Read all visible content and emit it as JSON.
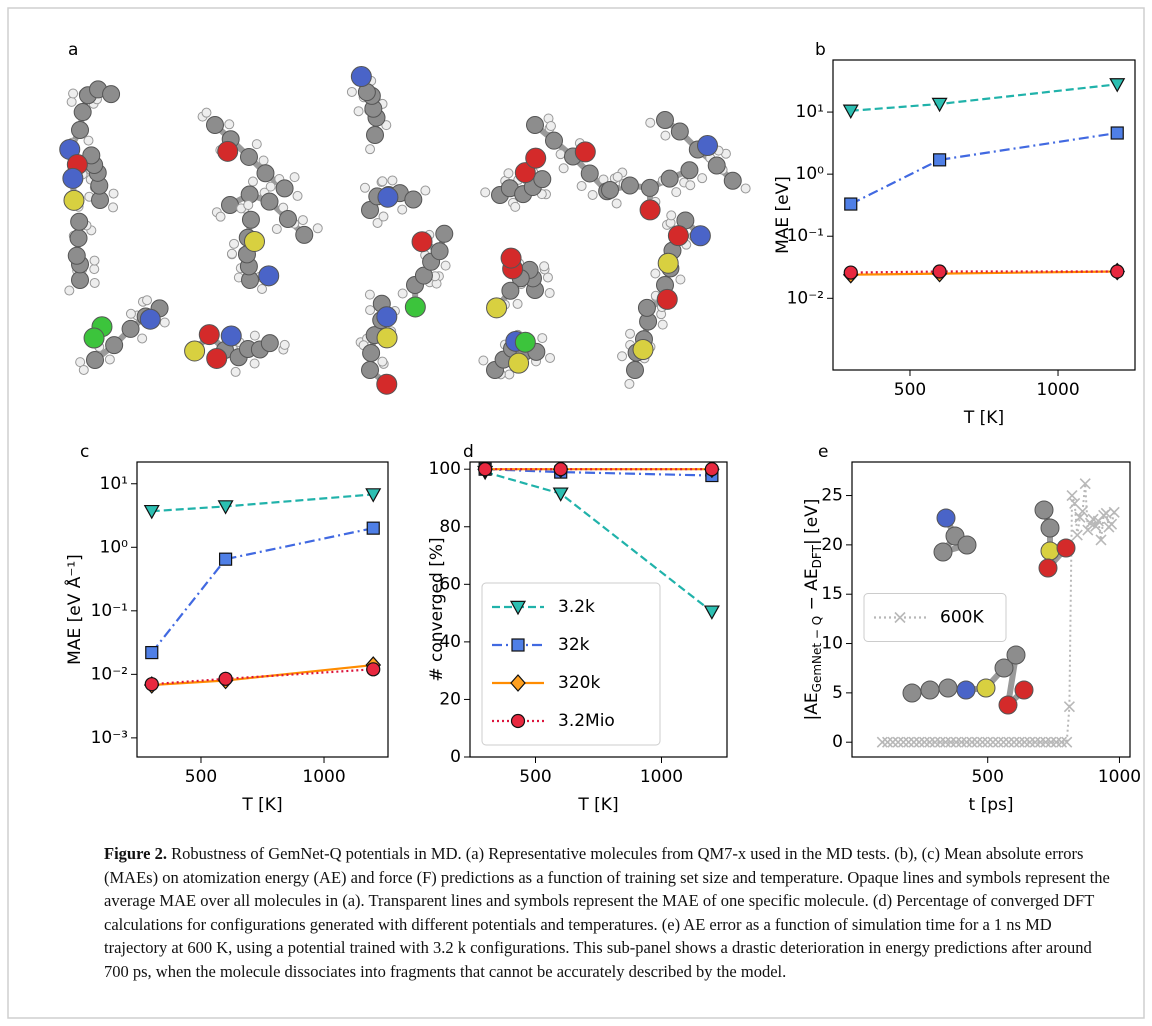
{
  "panel_a": {
    "panel_label": "a"
  },
  "chart_data": [
    {
      "panel_label": "b",
      "type": "line",
      "xlabel": "T [K]",
      "ylabel": "MAE [eV]",
      "log_y": true,
      "x": [
        300,
        600,
        1200
      ],
      "xlim": [
        240,
        1260
      ],
      "xticks": [
        500,
        1000
      ],
      "ylim": [
        0.0007,
        69
      ],
      "yticks": [
        {
          "value": 0.01,
          "label": "10⁻²"
        },
        {
          "value": 0.1,
          "label": "10⁻¹"
        },
        {
          "value": 1,
          "label": "10⁰"
        },
        {
          "value": 10,
          "label": "10¹"
        }
      ],
      "series": [
        {
          "color": "#20b2aa",
          "marker_color": "#2cbfb2",
          "marker": "triangle",
          "linestyle": "dashed",
          "values": [
            10.5,
            13.5,
            28
          ]
        },
        {
          "color": "#4169e1",
          "marker_color": "#4f7fe6",
          "marker": "square",
          "linestyle": "dashdot",
          "values": [
            0.33,
            1.7,
            4.6
          ]
        },
        {
          "color": "#ff8c00",
          "marker_color": "#ffa020",
          "marker": "diamond",
          "linestyle": "solid",
          "values": [
            0.024,
            0.025,
            0.027
          ]
        },
        {
          "color": "#dc143c",
          "marker_color": "#e8283f",
          "marker": "circle",
          "linestyle": "dotted",
          "values": [
            0.026,
            0.027,
            0.027
          ]
        }
      ]
    },
    {
      "panel_label": "c",
      "type": "line",
      "xlabel": "T [K]",
      "ylabel": "MAE [eV Å⁻¹]",
      "log_y": true,
      "x": [
        300,
        600,
        1200
      ],
      "xlim": [
        240,
        1260
      ],
      "xticks": [
        500,
        1000
      ],
      "ylim": [
        0.0005,
        22
      ],
      "yticks": [
        {
          "value": 0.001,
          "label": "10⁻³"
        },
        {
          "value": 0.01,
          "label": "10⁻²"
        },
        {
          "value": 0.1,
          "label": "10⁻¹"
        },
        {
          "value": 1,
          "label": "10⁰"
        },
        {
          "value": 10,
          "label": "10¹"
        }
      ],
      "series": [
        {
          "color": "#20b2aa",
          "marker_color": "#2cbfb2",
          "marker": "triangle",
          "linestyle": "dashed",
          "values": [
            3.7,
            4.4,
            6.8
          ]
        },
        {
          "color": "#4169e1",
          "marker_color": "#4f7fe6",
          "marker": "square",
          "linestyle": "dashdot",
          "values": [
            0.022,
            0.65,
            2.0
          ]
        },
        {
          "color": "#ff8c00",
          "marker_color": "#ffa020",
          "marker": "diamond",
          "linestyle": "solid",
          "values": [
            0.0068,
            0.008,
            0.014
          ]
        },
        {
          "color": "#dc143c",
          "marker_color": "#e8283f",
          "marker": "circle",
          "linestyle": "dotted",
          "values": [
            0.007,
            0.0085,
            0.012
          ]
        }
      ]
    },
    {
      "panel_label": "d",
      "type": "line",
      "xlabel": "T [K]",
      "ylabel": "# converged [%]",
      "log_y": false,
      "x": [
        300,
        600,
        1200
      ],
      "xlim": [
        240,
        1260
      ],
      "xticks": [
        500,
        1000
      ],
      "ylim": [
        0,
        102.5
      ],
      "yticks": [
        0,
        20,
        40,
        60,
        80,
        100
      ],
      "legend": "lower left",
      "series": [
        {
          "name": "3.2k",
          "color": "#20b2aa",
          "marker_color": "#2cbfb2",
          "marker": "triangle",
          "linestyle": "dashed",
          "values": [
            99,
            91.5,
            50.5
          ]
        },
        {
          "name": "32k",
          "color": "#4169e1",
          "marker_color": "#4f7fe6",
          "marker": "square",
          "linestyle": "dashdot",
          "values": [
            100,
            99,
            97.8
          ]
        },
        {
          "name": "320k",
          "color": "#ff8c00",
          "marker_color": "#ffa020",
          "marker": "diamond",
          "linestyle": "solid",
          "values": [
            100,
            100,
            100
          ]
        },
        {
          "name": "3.2Mio",
          "color": "#dc143c",
          "marker_color": "#e8283f",
          "marker": "circle",
          "linestyle": "dotted",
          "values": [
            100,
            100,
            100
          ]
        }
      ]
    },
    {
      "panel_label": "e",
      "type": "scatterline",
      "xlabel": "t [ps]",
      "ylabel": [
        "|AE",
        "GemNet − Q",
        " − AE",
        "DFT",
        "| [eV]"
      ],
      "log_y": false,
      "x": [
        100,
        120,
        140,
        160,
        180,
        200,
        220,
        240,
        260,
        280,
        300,
        320,
        340,
        360,
        380,
        400,
        420,
        440,
        460,
        480,
        500,
        520,
        540,
        560,
        580,
        600,
        620,
        640,
        660,
        680,
        700,
        720,
        740,
        760,
        780,
        800,
        810,
        820,
        830,
        840,
        850,
        860,
        870,
        880,
        890,
        900,
        910,
        920,
        930,
        940,
        950,
        960,
        970,
        980
      ],
      "xlim": [
        -15,
        1040
      ],
      "xticks": [
        500,
        1000
      ],
      "ylim": [
        -1.5,
        28.4
      ],
      "yticks": [
        0,
        5,
        10,
        15,
        20,
        25
      ],
      "legend": "center left",
      "series": [
        {
          "name": "600K",
          "color": "#b8b8b8",
          "marker": "x",
          "linestyle": "dotted",
          "values": [
            0,
            0,
            0,
            0,
            0,
            0,
            0,
            0,
            0,
            0,
            0,
            0,
            0,
            0,
            0,
            0,
            0,
            0,
            0,
            0,
            0,
            0,
            0,
            0,
            0,
            0,
            0,
            0,
            0,
            0,
            0,
            0,
            0,
            0,
            0,
            0,
            3.6,
            25,
            24.2,
            21,
            22.8,
            23.4,
            26.2,
            21.5,
            22.2,
            22.6,
            21.9,
            22.4,
            20.5,
            23,
            23.2,
            21.8,
            22.1,
            23.3
          ]
        }
      ]
    }
  ],
  "caption": {
    "label": "Figure 2.",
    "text": " Robustness of GemNet-Q potentials in MD. (a) Representative molecules from QM7-x used in the MD tests. (b), (c) Mean absolute errors (MAEs) on atomization energy (AE) and force (F) predictions as a function of training set size and temperature. Opaque lines and symbols represent the average MAE over all molecules in (a). Transparent lines and symbols represent the MAE of one specific molecule. (d) Percentage of converged DFT calculations for configurations generated with different potentials and temperatures. (e) AE error as a function of simulation time for a 1 ns MD trajectory at 600 K, using a potential trained with 3.2 k configurations. This sub-panel shows a drastic deterioration in energy predictions after around 700 ps, when the molecule dissociates into fragments that cannot be accurately described by the model."
  }
}
